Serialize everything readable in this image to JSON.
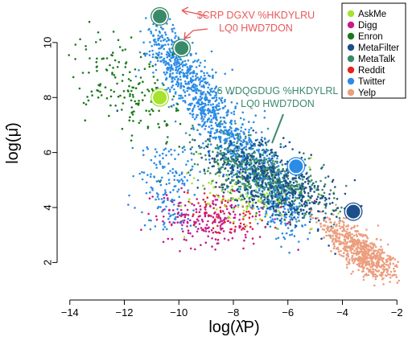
{
  "chart_data": {
    "type": "scatter",
    "title": "",
    "xlabel": "log(λ̂P)",
    "ylabel": "log(μ̂)",
    "xlim": [
      -14.2,
      -1.8
    ],
    "ylim": [
      0.9,
      11.4
    ],
    "xticks": [
      -14,
      -12,
      -10,
      -8,
      -6,
      -4,
      -2
    ],
    "xtick_labels": [
      "−14",
      "−12",
      "−10",
      "−8",
      "−6",
      "−4",
      "−2"
    ],
    "yticks": [
      2,
      4,
      6,
      8,
      10
    ],
    "ytick_labels": [
      "2",
      "4",
      "6",
      "8",
      "10"
    ],
    "grid": false,
    "legend_position": "top-right",
    "series": [
      {
        "name": "AskMe",
        "color": "#a6e22e",
        "cloud": {
          "center": [
            -7.3,
            4.6
          ],
          "spread": [
            1.1,
            0.6
          ],
          "count": 150
        },
        "highlight": [
          -10.7,
          8.0
        ]
      },
      {
        "name": "Digg",
        "color": "#c51b8a",
        "cloud": {
          "center": [
            -8.8,
            3.6
          ],
          "spread": [
            1.0,
            0.5
          ],
          "count": 220
        },
        "highlight": null
      },
      {
        "name": "Enron",
        "color": "#1a7a1a",
        "cloud": {
          "center": [
            -11.8,
            8.1
          ],
          "spread": [
            1.0,
            0.9
          ],
          "count": 170
        },
        "highlight": null
      },
      {
        "name": "MetaFilter",
        "color": "#1b4f8a",
        "cloud": {
          "center": [
            -6.5,
            4.9
          ],
          "spread": [
            1.2,
            0.6
          ],
          "count": 500
        },
        "highlight": [
          -3.6,
          3.85
        ]
      },
      {
        "name": "MetaTalk",
        "color": "#3a8a6a",
        "cloud": {
          "center": [
            -7.0,
            5.2
          ],
          "spread": [
            1.2,
            0.5
          ],
          "count": 550
        },
        "highlight": [
          -9.9,
          9.8
        ]
      },
      {
        "name": "Reddit",
        "color": "#e8231e",
        "cloud": {
          "center": [
            -8.0,
            3.7
          ],
          "spread": [
            0.9,
            0.4
          ],
          "count": 60
        },
        "highlight": null
      },
      {
        "name": "Twitter",
        "color": "#2b8ce6",
        "cloud": {
          "center": [
            -9.6,
            6.8
          ],
          "spread": [
            1.0,
            1.6
          ],
          "count": 1500
        },
        "highlight": [
          -5.7,
          5.5
        ]
      },
      {
        "name": "Yelp",
        "color": "#ec9e7e",
        "cloud": {
          "center": [
            -3.3,
            2.4
          ],
          "spread": [
            0.7,
            0.5
          ],
          "count": 700
        },
        "highlight": null
      }
    ],
    "extra_highlights": [
      {
        "series": "MetaTalk",
        "point": [
          -10.7,
          10.95
        ]
      }
    ],
    "annotations": [
      {
        "id": "average",
        "lines": [
          "$CRP DGXV %HKDYLRU",
          "LQ0 HWD7DON"
        ],
        "color": "#e8585a"
      },
      {
        "id": "standard",
        "lines": [
          "6 WDQGDUG %HKDYLRL",
          "LQ0 HWD7DON"
        ],
        "color": "#3a8a6a"
      }
    ]
  }
}
